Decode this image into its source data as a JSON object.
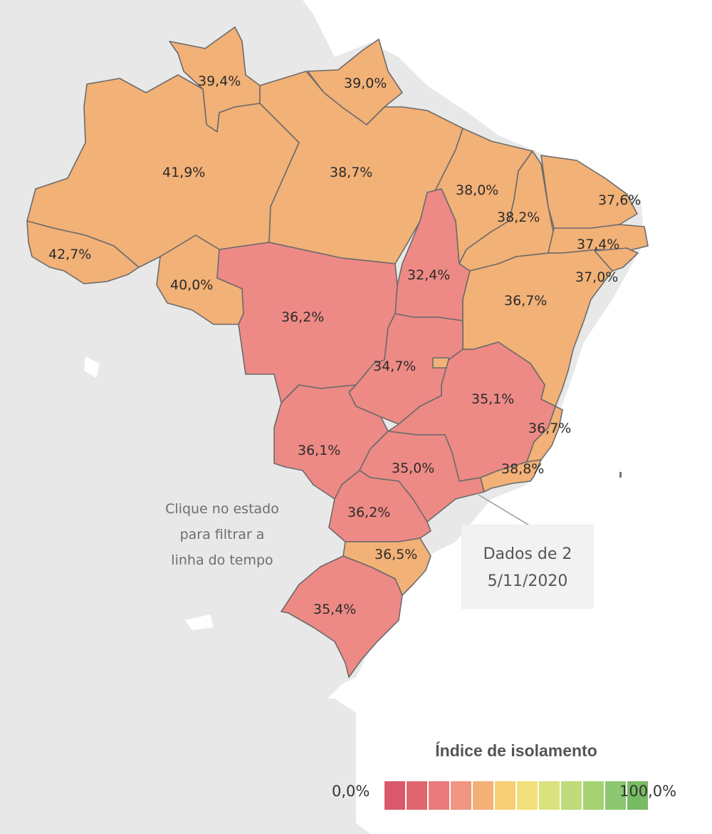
{
  "map": {
    "states": [
      {
        "id": "RR",
        "label": "39,4%",
        "value": 39.4,
        "color": "#f2b177"
      },
      {
        "id": "AP",
        "label": "39,0%",
        "value": 39.0,
        "color": "#f2b177"
      },
      {
        "id": "AM",
        "label": "41,9%",
        "value": 41.9,
        "color": "#f2b177"
      },
      {
        "id": "PA",
        "label": "38,7%",
        "value": 38.7,
        "color": "#f2b177"
      },
      {
        "id": "MA",
        "label": "38,0%",
        "value": 38.0,
        "color": "#f2b177"
      },
      {
        "id": "PI",
        "label": "38,2%",
        "value": 38.2,
        "color": "#f2b177"
      },
      {
        "id": "CE",
        "label": "37,6%",
        "value": 37.6,
        "color": "#f2b177"
      },
      {
        "id": "PB",
        "label": "37,4%",
        "value": 37.4,
        "color": "#f2b177"
      },
      {
        "id": "AL",
        "label": "37,0%",
        "value": 37.0,
        "color": "#f2b177"
      },
      {
        "id": "AC",
        "label": "42,7%",
        "value": 42.7,
        "color": "#f2b177"
      },
      {
        "id": "RO",
        "label": "40,0%",
        "value": 40.0,
        "color": "#f2b177"
      },
      {
        "id": "TO",
        "label": "32,4%",
        "value": 32.4,
        "color": "#ed8a85"
      },
      {
        "id": "MT",
        "label": "36,2%",
        "value": 36.2,
        "color": "#ed8a85"
      },
      {
        "id": "BA",
        "label": "36,7%",
        "value": 36.7,
        "color": "#f2b177"
      },
      {
        "id": "GO",
        "label": "34,7%",
        "value": 34.7,
        "color": "#ed8a85"
      },
      {
        "id": "MG",
        "label": "35,1%",
        "value": 35.1,
        "color": "#ed8a85"
      },
      {
        "id": "ES",
        "label": "36,7%",
        "value": 36.7,
        "color": "#f2b177"
      },
      {
        "id": "MS",
        "label": "36,1%",
        "value": 36.1,
        "color": "#ed8a85"
      },
      {
        "id": "SP",
        "label": "35,0%",
        "value": 35.0,
        "color": "#ed8a85"
      },
      {
        "id": "RJ",
        "label": "38,8%",
        "value": 38.8,
        "color": "#f2b177"
      },
      {
        "id": "PR",
        "label": "36,2%",
        "value": 36.2,
        "color": "#ed8a85"
      },
      {
        "id": "SC",
        "label": "36,5%",
        "value": 36.5,
        "color": "#f2b177"
      },
      {
        "id": "RS",
        "label": "35,4%",
        "value": 35.4,
        "color": "#ed8a85"
      }
    ]
  },
  "hint": {
    "line1": "Clique no estado",
    "line2": "para filtrar a",
    "line3": "linha do tempo"
  },
  "annotation": {
    "line1": "Dados de 2",
    "line2": "5/11/2020"
  },
  "legend": {
    "title": "Índice de isolamento",
    "min_label": "0,0%",
    "max_label": "100,0%",
    "colors": [
      "#d9596a",
      "#e2666f",
      "#e97b7c",
      "#ef9581",
      "#f3b077",
      "#f6cf74",
      "#f4e07a",
      "#d9e27c",
      "#bfdb7b",
      "#a6d274",
      "#8cc670",
      "#78bb63"
    ]
  }
}
